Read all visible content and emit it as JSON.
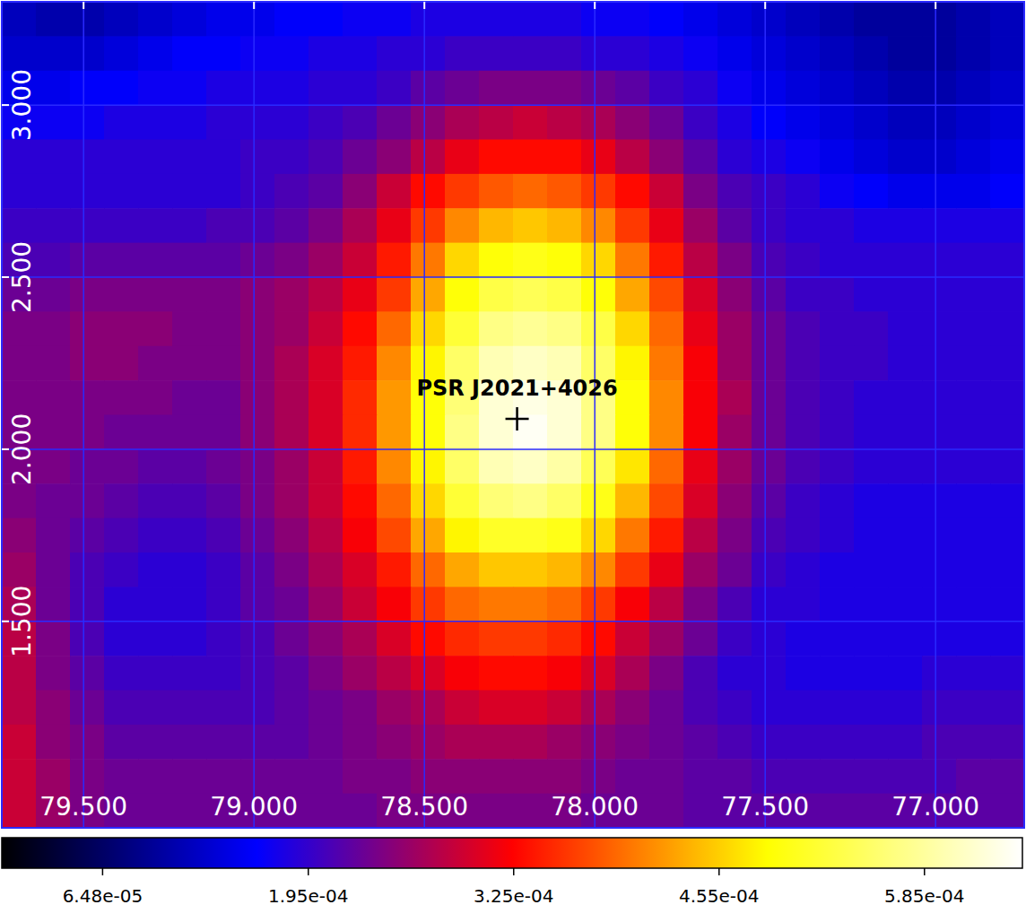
{
  "chart_data": {
    "type": "heatmap",
    "xlim": [
      79.74,
      76.74
    ],
    "ylim": [
      0.9,
      3.3
    ],
    "xticks": [
      {
        "value": 79.5,
        "label": "79.500"
      },
      {
        "value": 79.0,
        "label": "79.000"
      },
      {
        "value": 78.5,
        "label": "78.500"
      },
      {
        "value": 78.0,
        "label": "78.000"
      },
      {
        "value": 77.5,
        "label": "77.500"
      },
      {
        "value": 77.0,
        "label": "77.000"
      }
    ],
    "yticks": [
      {
        "value": 1.5,
        "label": "1.500"
      },
      {
        "value": 2.0,
        "label": "2.000"
      },
      {
        "value": 2.5,
        "label": "2.500"
      },
      {
        "value": 3.0,
        "label": "3.000"
      }
    ],
    "grid": true,
    "cells": [
      [
        0.00012,
        0.00011,
        0.00011,
        0.00012,
        0.00013,
        0.00014,
        0.00015,
        0.00015,
        0.00016,
        0.00016,
        0.00017,
        0.00017,
        0.00018,
        0.00018,
        0.00018,
        0.00018,
        0.00018,
        0.00017,
        0.00017,
        0.00016,
        0.00015,
        0.00014,
        0.00013,
        0.00012,
        0.00011,
        0.0001,
        0.0001,
        0.0001,
        0.00011,
        0.00012
      ],
      [
        0.00013,
        0.00013,
        0.00013,
        0.00014,
        0.00015,
        0.00016,
        0.00016,
        0.00017,
        0.00017,
        0.00018,
        0.00018,
        0.00019,
        0.00019,
        0.0002,
        0.0002,
        0.0002,
        0.0002,
        0.00019,
        0.00019,
        0.00018,
        0.00017,
        0.00015,
        0.00014,
        0.00013,
        0.00012,
        0.00011,
        0.0001,
        0.0001,
        0.00011,
        0.00012
      ],
      [
        0.00015,
        0.00015,
        0.00016,
        0.00016,
        0.00017,
        0.00017,
        0.00018,
        0.00018,
        0.00018,
        0.00019,
        0.00019,
        0.0002,
        0.00022,
        0.00023,
        0.00024,
        0.00024,
        0.00024,
        0.00023,
        0.00022,
        0.0002,
        0.00019,
        0.00017,
        0.00015,
        0.00014,
        0.00013,
        0.00012,
        0.00011,
        0.00011,
        0.00012,
        0.00013
      ],
      [
        0.00017,
        0.00017,
        0.00017,
        0.00018,
        0.00018,
        0.00018,
        0.00019,
        0.00019,
        0.00019,
        0.0002,
        0.00021,
        0.00023,
        0.00025,
        0.00027,
        0.00028,
        0.00029,
        0.00028,
        0.00027,
        0.00025,
        0.00023,
        0.0002,
        0.00018,
        0.00016,
        0.00015,
        0.00014,
        0.00013,
        0.00012,
        0.00012,
        0.00013,
        0.00014
      ],
      [
        0.00019,
        0.00019,
        0.00019,
        0.00019,
        0.00019,
        0.00019,
        0.00019,
        0.0002,
        0.0002,
        0.00021,
        0.00023,
        0.00025,
        0.00028,
        0.00031,
        0.00033,
        0.00033,
        0.00033,
        0.00031,
        0.00028,
        0.00025,
        0.00022,
        0.00019,
        0.00018,
        0.00017,
        0.00015,
        0.00014,
        0.00013,
        0.00013,
        0.00014,
        0.00015
      ],
      [
        0.00019,
        0.00019,
        0.00019,
        0.00019,
        0.00019,
        0.00019,
        0.00019,
        0.0002,
        0.00021,
        0.00022,
        0.00025,
        0.00029,
        0.00033,
        0.00036,
        0.00038,
        0.00039,
        0.00038,
        0.00036,
        0.00033,
        0.00029,
        0.00024,
        0.00021,
        0.0002,
        0.00019,
        0.00017,
        0.00016,
        0.00015,
        0.00015,
        0.00015,
        0.00016
      ],
      [
        0.0002,
        0.0002,
        0.0002,
        0.0002,
        0.0002,
        0.0002,
        0.00021,
        0.00021,
        0.00022,
        0.00024,
        0.00027,
        0.00031,
        0.00036,
        0.00041,
        0.00044,
        0.00045,
        0.00044,
        0.00041,
        0.00036,
        0.00031,
        0.00026,
        0.00022,
        0.0002,
        0.00019,
        0.00019,
        0.00018,
        0.00018,
        0.00018,
        0.00018,
        0.00018
      ],
      [
        0.00021,
        0.00021,
        0.00022,
        0.00022,
        0.00022,
        0.00022,
        0.00022,
        0.00023,
        0.00024,
        0.00026,
        0.00029,
        0.00034,
        0.0004,
        0.00046,
        0.00049,
        0.0005,
        0.00049,
        0.00046,
        0.0004,
        0.00034,
        0.00028,
        0.00024,
        0.00021,
        0.0002,
        0.00019,
        0.00019,
        0.00019,
        0.00019,
        0.00019,
        0.00019
      ],
      [
        0.00023,
        0.00023,
        0.00024,
        0.00024,
        0.00024,
        0.00024,
        0.00024,
        0.00025,
        0.00026,
        0.00028,
        0.00031,
        0.00036,
        0.00043,
        0.00049,
        0.00053,
        0.00054,
        0.00053,
        0.00049,
        0.00043,
        0.00037,
        0.0003,
        0.00025,
        0.00022,
        0.0002,
        0.0002,
        0.00019,
        0.00019,
        0.00019,
        0.00019,
        0.00019
      ],
      [
        0.00024,
        0.00024,
        0.00025,
        0.00025,
        0.00025,
        0.00024,
        0.00024,
        0.00025,
        0.00026,
        0.00029,
        0.00033,
        0.00039,
        0.00046,
        0.00052,
        0.00057,
        0.00058,
        0.00057,
        0.00053,
        0.00046,
        0.00039,
        0.00031,
        0.00026,
        0.00023,
        0.00021,
        0.0002,
        0.0002,
        0.00019,
        0.00019,
        0.00019,
        0.00019
      ],
      [
        0.00024,
        0.00024,
        0.00025,
        0.00025,
        0.00024,
        0.00024,
        0.00024,
        0.00025,
        0.00027,
        0.0003,
        0.00034,
        0.00041,
        0.00048,
        0.00055,
        0.0006,
        0.00061,
        0.0006,
        0.00055,
        0.00048,
        0.0004,
        0.00032,
        0.00026,
        0.00023,
        0.00021,
        0.0002,
        0.0002,
        0.00019,
        0.00019,
        0.00019,
        0.00019
      ],
      [
        0.00024,
        0.00024,
        0.00024,
        0.00024,
        0.00024,
        0.00023,
        0.00023,
        0.00025,
        0.00027,
        0.0003,
        0.00035,
        0.00042,
        0.00049,
        0.00056,
        0.00062,
        0.00063,
        0.00062,
        0.00057,
        0.00049,
        0.00041,
        0.00032,
        0.00027,
        0.00023,
        0.00021,
        0.0002,
        0.00019,
        0.00019,
        0.00019,
        0.00019,
        0.00019
      ],
      [
        0.00024,
        0.00024,
        0.00024,
        0.00023,
        0.00023,
        0.00023,
        0.00023,
        0.00025,
        0.00027,
        0.0003,
        0.00035,
        0.00042,
        0.00049,
        0.00057,
        0.00062,
        0.00064,
        0.00062,
        0.00057,
        0.00049,
        0.00041,
        0.00032,
        0.00026,
        0.00023,
        0.00021,
        0.0002,
        0.00019,
        0.00019,
        0.00019,
        0.00019,
        0.00019
      ],
      [
        0.00024,
        0.00024,
        0.00023,
        0.00023,
        0.00022,
        0.00022,
        0.00023,
        0.00024,
        0.00026,
        0.00029,
        0.00034,
        0.00041,
        0.00048,
        0.00055,
        0.0006,
        0.00061,
        0.00059,
        0.00054,
        0.00047,
        0.00039,
        0.00031,
        0.00026,
        0.00023,
        0.00021,
        0.0002,
        0.00019,
        0.00019,
        0.00019,
        0.00019,
        0.00019
      ],
      [
        0.00024,
        0.00023,
        0.00023,
        0.00022,
        0.00021,
        0.00021,
        0.00022,
        0.00024,
        0.00026,
        0.00029,
        0.00033,
        0.00039,
        0.00046,
        0.00052,
        0.00056,
        0.00057,
        0.00055,
        0.0005,
        0.00044,
        0.00037,
        0.0003,
        0.00025,
        0.00022,
        0.0002,
        0.00019,
        0.00018,
        0.00018,
        0.00018,
        0.00018,
        0.00018
      ],
      [
        0.00025,
        0.00023,
        0.00022,
        0.00021,
        0.0002,
        0.0002,
        0.00021,
        0.00023,
        0.00025,
        0.00028,
        0.00032,
        0.00037,
        0.00043,
        0.00048,
        0.00051,
        0.00051,
        0.0005,
        0.00046,
        0.0004,
        0.00034,
        0.00028,
        0.00024,
        0.00021,
        0.0002,
        0.00019,
        0.00018,
        0.00018,
        0.00018,
        0.00018,
        0.00018
      ],
      [
        0.00026,
        0.00023,
        0.00021,
        0.0002,
        0.00019,
        0.00019,
        0.0002,
        0.00022,
        0.00024,
        0.00027,
        0.0003,
        0.00034,
        0.00039,
        0.00043,
        0.00045,
        0.00045,
        0.00044,
        0.00041,
        0.00036,
        0.00031,
        0.00026,
        0.00023,
        0.0002,
        0.00019,
        0.00018,
        0.00018,
        0.00018,
        0.00018,
        0.00018,
        0.00018
      ],
      [
        0.00027,
        0.00023,
        0.00021,
        0.00019,
        0.00019,
        0.00019,
        0.0002,
        0.00022,
        0.00023,
        0.00026,
        0.00029,
        0.00032,
        0.00036,
        0.00039,
        0.0004,
        0.0004,
        0.00039,
        0.00036,
        0.00032,
        0.00028,
        0.00024,
        0.00021,
        0.00019,
        0.00019,
        0.00018,
        0.00018,
        0.00018,
        0.00018,
        0.00018,
        0.00018
      ],
      [
        0.00028,
        0.00024,
        0.00021,
        0.00019,
        0.00019,
        0.00019,
        0.0002,
        0.00021,
        0.00023,
        0.00025,
        0.00027,
        0.0003,
        0.00033,
        0.00035,
        0.00036,
        0.00036,
        0.00035,
        0.00033,
        0.00029,
        0.00026,
        0.00023,
        0.0002,
        0.00019,
        0.00018,
        0.00018,
        0.00018,
        0.00018,
        0.00018,
        0.00018,
        0.00018
      ],
      [
        0.00028,
        0.00024,
        0.00022,
        0.0002,
        0.0002,
        0.0002,
        0.0002,
        0.00021,
        0.00022,
        0.00024,
        0.00026,
        0.00028,
        0.0003,
        0.00032,
        0.00033,
        0.00033,
        0.00032,
        0.0003,
        0.00027,
        0.00024,
        0.00021,
        0.00019,
        0.00019,
        0.00018,
        0.00018,
        0.00018,
        0.00018,
        0.00019,
        0.00019,
        0.00019
      ],
      [
        0.00028,
        0.00025,
        0.00023,
        0.00021,
        0.00021,
        0.00021,
        0.00021,
        0.00021,
        0.00022,
        0.00023,
        0.00024,
        0.00026,
        0.00027,
        0.00029,
        0.0003,
        0.0003,
        0.00029,
        0.00027,
        0.00025,
        0.00023,
        0.00021,
        0.0002,
        0.00019,
        0.00019,
        0.00019,
        0.00019,
        0.00019,
        0.0002,
        0.0002,
        0.0002
      ],
      [
        0.00029,
        0.00025,
        0.00024,
        0.00022,
        0.00022,
        0.00022,
        0.00022,
        0.00022,
        0.00022,
        0.00023,
        0.00024,
        0.00025,
        0.00026,
        0.00027,
        0.00027,
        0.00027,
        0.00026,
        0.00025,
        0.00024,
        0.00023,
        0.00022,
        0.00021,
        0.0002,
        0.0002,
        0.0002,
        0.0002,
        0.0002,
        0.00021,
        0.00021,
        0.00021
      ],
      [
        0.00029,
        0.00026,
        0.00024,
        0.00023,
        0.00023,
        0.00023,
        0.00023,
        0.00023,
        0.00023,
        0.00023,
        0.00024,
        0.00024,
        0.00025,
        0.00025,
        0.00025,
        0.00025,
        0.00025,
        0.00024,
        0.00023,
        0.00023,
        0.00022,
        0.00022,
        0.00021,
        0.00021,
        0.00021,
        0.00021,
        0.00021,
        0.00021,
        0.00022,
        0.00022
      ],
      [
        0.00029,
        0.00026,
        0.00024,
        0.00023,
        0.00023,
        0.00023,
        0.00023,
        0.00023,
        0.00023,
        0.00023,
        0.00023,
        0.00024,
        0.00024,
        0.00024,
        0.00024,
        0.00024,
        0.00024,
        0.00023,
        0.00023,
        0.00023,
        0.00022,
        0.00022,
        0.00022,
        0.00022,
        0.00022,
        0.00022,
        0.00022,
        0.00022,
        0.00022,
        0.00022
      ]
    ],
    "colorbar": {
      "range": [
        1e-06,
        0.000647
      ],
      "ticks": [
        {
          "value": 6.48e-05,
          "label": "6.48e-05"
        },
        {
          "value": 0.000195,
          "label": "1.95e-04"
        },
        {
          "value": 0.000325,
          "label": "3.25e-04"
        },
        {
          "value": 0.000455,
          "label": "4.55e-04"
        },
        {
          "value": 0.000585,
          "label": "5.85e-04"
        }
      ]
    },
    "annotations": [
      {
        "text": "PSR J2021+4026",
        "x": 78.228,
        "y": 2.088,
        "marker": "+"
      }
    ]
  }
}
